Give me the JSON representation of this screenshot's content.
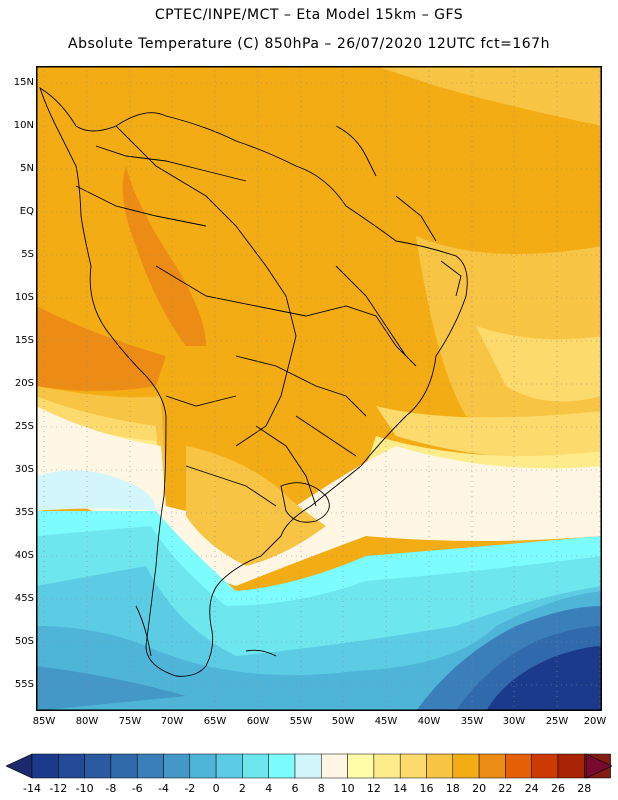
{
  "title_line1": "CPTEC/INPE/MCT –   Eta Model 15km – GFS",
  "title_line2": "Absolute Temperature (C) 850hPa – 26/07/2020 12UTC fct=167h",
  "lat_labels": [
    "15N",
    "10N",
    "5N",
    "EQ",
    "5S",
    "10S",
    "15S",
    "20S",
    "25S",
    "30S",
    "35S",
    "40S",
    "45S",
    "50S",
    "55S"
  ],
  "lon_labels": [
    "85W",
    "80W",
    "75W",
    "70W",
    "65W",
    "60W",
    "55W",
    "50W",
    "45W",
    "40W",
    "35W",
    "30W",
    "25W",
    "20W"
  ],
  "colorbar": {
    "labels": [
      "-14",
      "-12",
      "-10",
      "-8",
      "-6",
      "-4",
      "-2",
      "0",
      "2",
      "4",
      "6",
      "8",
      "10",
      "12",
      "14",
      "16",
      "18",
      "20",
      "22",
      "24",
      "26",
      "28"
    ],
    "colors": [
      "#1c3a8c",
      "#224a96",
      "#2a5aa0",
      "#306aac",
      "#3a7eba",
      "#4498c8",
      "#4eb4d8",
      "#5ccce4",
      "#6ee6ee",
      "#7cfcfc",
      "#d2f6fc",
      "#fff6e4",
      "#fffca8",
      "#fcec8c",
      "#fcda6c",
      "#f8c444",
      "#f4ac14",
      "#ec8c14",
      "#e46004",
      "#cc3a04",
      "#a82404",
      "#821c14"
    ],
    "low_arrow": "#1a2a6c",
    "high_arrow": "#780a30"
  }
}
